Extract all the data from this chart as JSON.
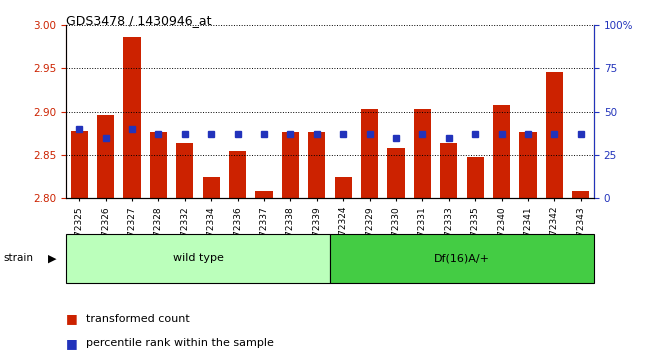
{
  "title": "GDS3478 / 1430946_at",
  "samples": [
    "GSM272325",
    "GSM272326",
    "GSM272327",
    "GSM272328",
    "GSM272332",
    "GSM272334",
    "GSM272336",
    "GSM272337",
    "GSM272338",
    "GSM272339",
    "GSM272324",
    "GSM272329",
    "GSM272330",
    "GSM272331",
    "GSM272333",
    "GSM272335",
    "GSM272340",
    "GSM272341",
    "GSM272342",
    "GSM272343"
  ],
  "red_values": [
    2.878,
    2.896,
    2.986,
    2.876,
    2.864,
    2.825,
    2.854,
    2.808,
    2.876,
    2.876,
    2.825,
    2.903,
    2.858,
    2.903,
    2.864,
    2.848,
    2.908,
    2.876,
    2.946,
    2.808
  ],
  "blue_values": [
    40,
    35,
    40,
    37,
    37,
    37,
    37,
    37,
    37,
    37,
    37,
    37,
    35,
    37,
    35,
    37,
    37,
    37,
    37,
    37
  ],
  "wild_type_count": 10,
  "df16_count": 10,
  "ylim_left": [
    2.8,
    3.0
  ],
  "ylim_right": [
    0,
    100
  ],
  "yticks_left": [
    2.8,
    2.85,
    2.9,
    2.95,
    3.0
  ],
  "yticks_right": [
    0,
    25,
    50,
    75,
    100
  ],
  "bar_color": "#cc2200",
  "blue_color": "#2233bb",
  "wild_type_color": "#bbffbb",
  "df16_color": "#44cc44",
  "tick_color_left": "#cc2200",
  "tick_color_right": "#2233bb",
  "bar_bottom": 2.8,
  "bar_width": 0.65,
  "title_fontsize": 9,
  "tick_fontsize": 7.5,
  "sample_fontsize": 6.5,
  "legend_fontsize": 8
}
